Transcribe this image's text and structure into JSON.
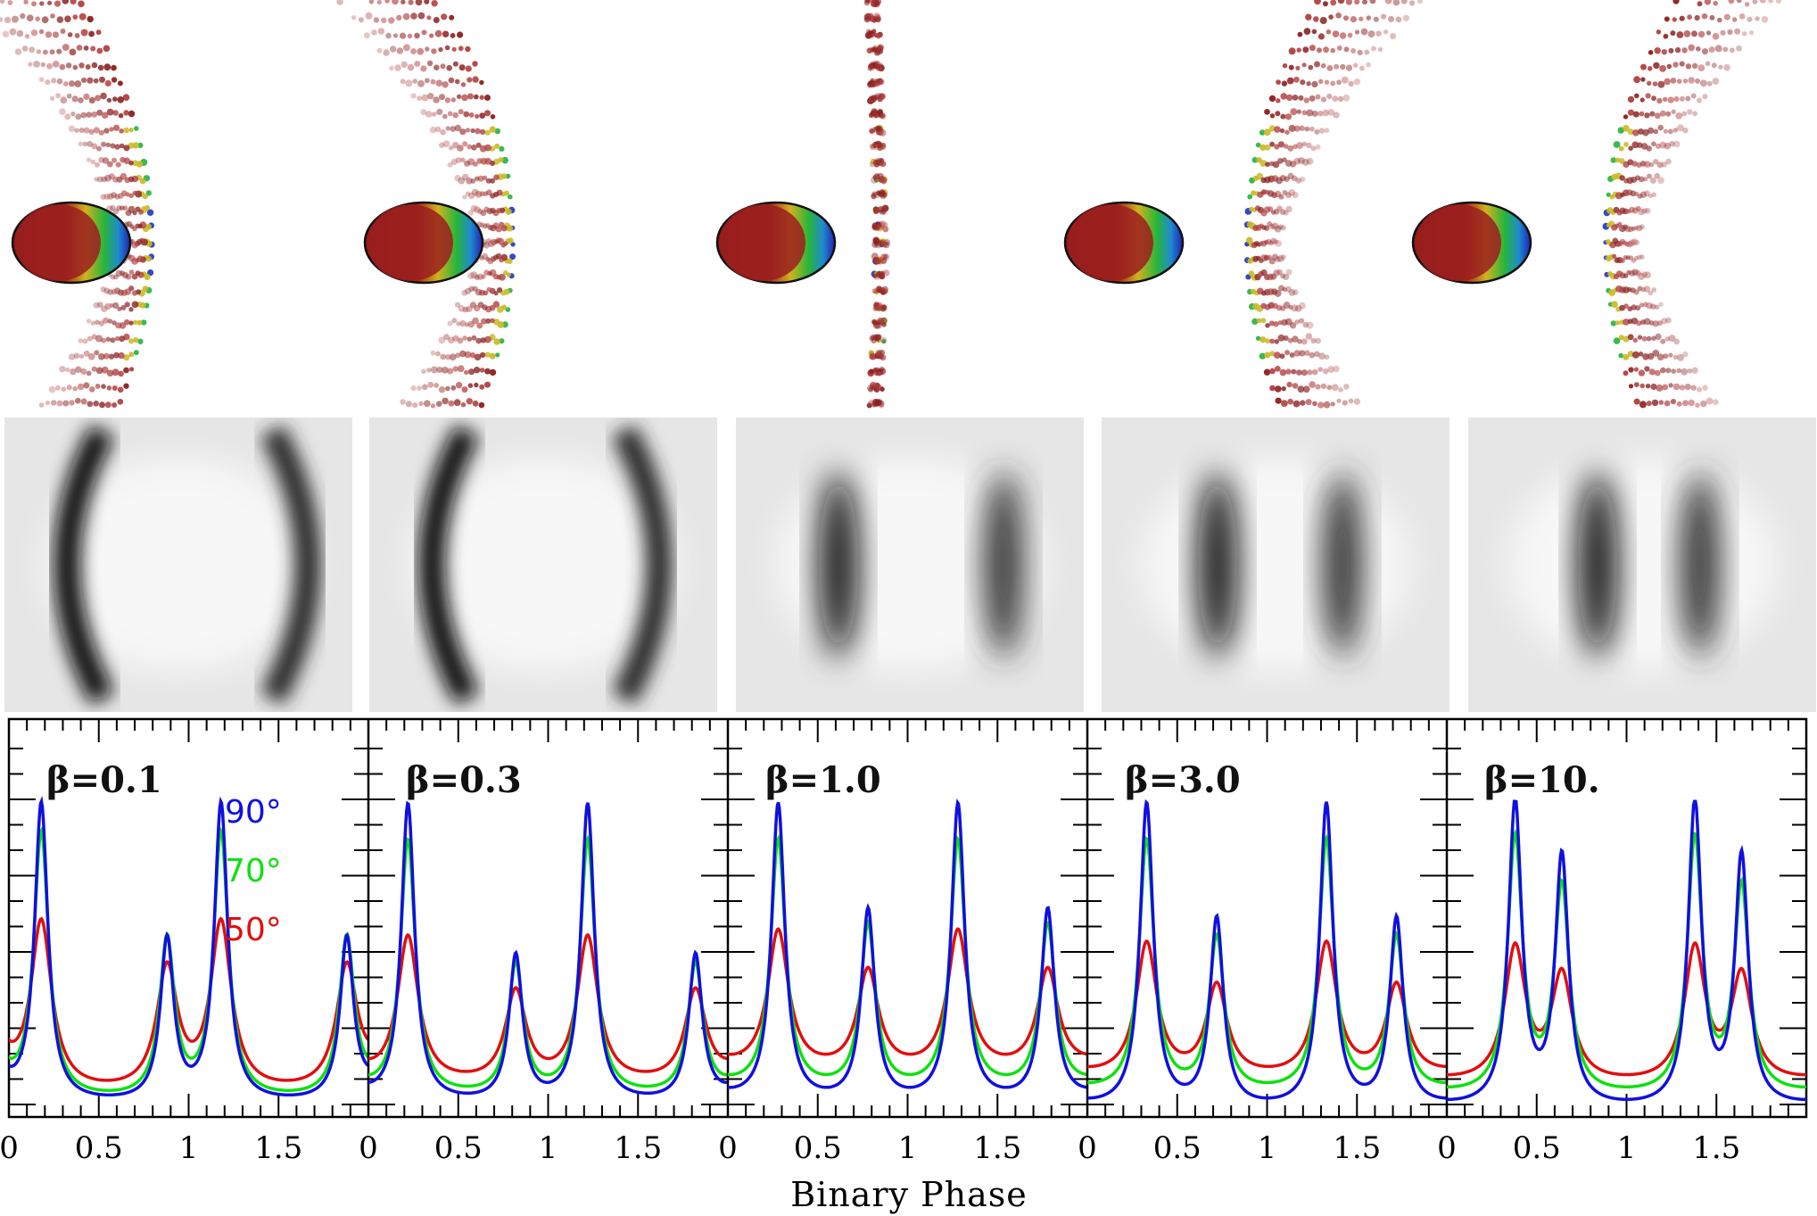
{
  "chart_data": {
    "type": "line",
    "xlabel": "Binary Phase",
    "ylabel": "",
    "xlim": [
      0,
      2
    ],
    "x_ticks": [
      "0",
      "0.5",
      "1",
      "1.5"
    ],
    "grid": false,
    "legend": {
      "placement": "inside first panel, right of center",
      "entries": [
        {
          "label": "90°",
          "color": "#1010e0"
        },
        {
          "label": "70°",
          "color": "#10e010"
        },
        {
          "label": "50°",
          "color": "#e01010"
        }
      ]
    },
    "panels": [
      {
        "label": "β=0.1",
        "peaks_phase": [
          0.18,
          0.88,
          1.18,
          1.88
        ],
        "peaks": {
          "90°": [
            1.0,
            0.55,
            1.0,
            0.55
          ],
          "70°": [
            0.9,
            0.55,
            0.9,
            0.55
          ],
          "50°": [
            0.6,
            0.45,
            0.6,
            0.45
          ]
        },
        "minima": {
          "90°": 0.02,
          "70°": 0.03,
          "50°": 0.05
        }
      },
      {
        "label": "β=0.3",
        "peaks_phase": [
          0.22,
          0.82,
          1.22,
          1.82
        ],
        "peaks": {
          "90°": [
            1.0,
            0.5,
            1.0,
            0.5
          ],
          "70°": [
            0.88,
            0.47,
            0.88,
            0.47
          ],
          "50°": [
            0.56,
            0.38,
            0.56,
            0.38
          ]
        },
        "minima": {
          "90°": 0.02,
          "70°": 0.04,
          "50°": 0.08
        }
      },
      {
        "label": "β=1.0",
        "peaks_phase": [
          0.28,
          0.78,
          1.28,
          1.78
        ],
        "peaks": {
          "90°": [
            1.0,
            0.65,
            1.0,
            0.65
          ],
          "70°": [
            0.88,
            0.6,
            0.88,
            0.6
          ],
          "50°": [
            0.58,
            0.45,
            0.58,
            0.45
          ]
        },
        "minima": {
          "90°": 0.02,
          "70°": 0.06,
          "50°": 0.12
        }
      },
      {
        "label": "β=3.0",
        "peaks_phase": [
          0.33,
          0.72,
          1.33,
          1.72
        ],
        "peaks": {
          "90°": [
            1.0,
            0.62,
            1.0,
            0.62
          ],
          "70°": [
            0.88,
            0.56,
            0.88,
            0.56
          ],
          "50°": [
            0.54,
            0.4,
            0.54,
            0.4
          ]
        },
        "minima": {
          "90°": 0.0,
          "70°": 0.05,
          "50°": 0.1
        }
      },
      {
        "label": "β=10.",
        "peaks_phase": [
          0.38,
          0.64,
          1.38,
          1.64
        ],
        "peaks": {
          "90°": [
            1.0,
            0.82,
            1.0,
            0.82
          ],
          "70°": [
            0.88,
            0.72,
            0.88,
            0.72
          ],
          "50°": [
            0.52,
            0.43,
            0.52,
            0.43
          ]
        },
        "minima": {
          "90°": 0.0,
          "70°": 0.04,
          "50°": 0.08
        }
      }
    ]
  }
}
